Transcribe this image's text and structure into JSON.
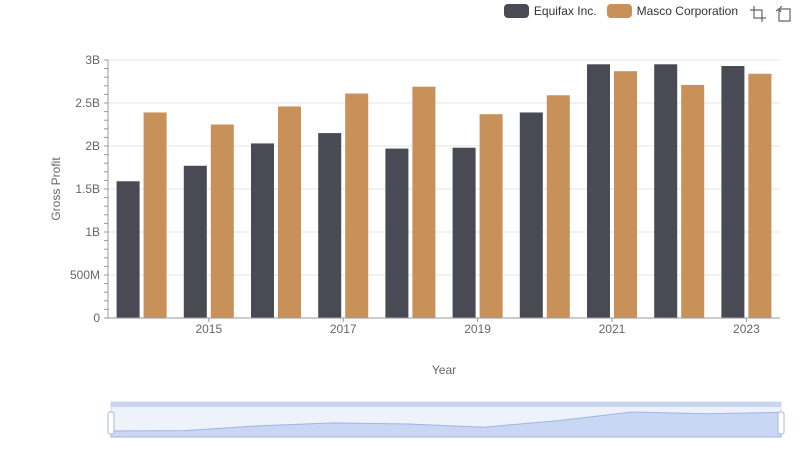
{
  "legend": {
    "items": [
      {
        "name": "Equifax Inc.",
        "color": "#4a4a55"
      },
      {
        "name": "Masco Corporation",
        "color": "#c9915a"
      }
    ]
  },
  "toolbox": {
    "icons": [
      "zoom-select-icon",
      "zoom-reset-icon"
    ]
  },
  "chart_data": {
    "type": "bar",
    "categories": [
      "2014",
      "2015",
      "2016",
      "2017",
      "2018",
      "2019",
      "2020",
      "2021",
      "2022",
      "2023"
    ],
    "x_tick_labels": [
      "2015",
      "2017",
      "2019",
      "2021",
      "2023"
    ],
    "series": [
      {
        "name": "Equifax Inc.",
        "color": "#4a4a55",
        "values": [
          1.59,
          1.77,
          2.03,
          2.15,
          1.97,
          1.98,
          2.39,
          2.95,
          2.95,
          2.93
        ]
      },
      {
        "name": "Masco Corporation",
        "color": "#c9915a",
        "values": [
          2.39,
          2.25,
          2.46,
          2.61,
          2.69,
          2.37,
          2.59,
          2.87,
          2.71,
          2.84
        ]
      }
    ],
    "xlabel": "Year",
    "ylabel": "Gross Profit",
    "ylim": [
      0,
      3
    ],
    "y_ticks": [
      {
        "value": 0,
        "label": "0"
      },
      {
        "value": 0.5,
        "label": "500M"
      },
      {
        "value": 1,
        "label": "1B"
      },
      {
        "value": 1.5,
        "label": "1.5B"
      },
      {
        "value": 2,
        "label": "2B"
      },
      {
        "value": 2.5,
        "label": "2.5B"
      },
      {
        "value": 3,
        "label": "3B"
      }
    ],
    "grid": true,
    "legend_position": "top-right",
    "datazoom": {
      "range": [
        0,
        100
      ]
    }
  }
}
